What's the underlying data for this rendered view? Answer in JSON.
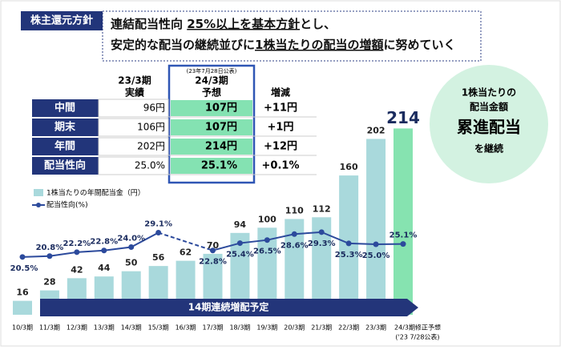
{
  "header": {
    "tag": "株主還元方針",
    "line1": [
      "連結配当性向 ",
      "25%以上を基本方針",
      "とし、"
    ],
    "line2": [
      "安定的な配当の継続並びに",
      "1株当たりの配当の増額",
      "に努めていく"
    ]
  },
  "table": {
    "note": "(23年7月28日公表)",
    "columns": [
      [
        "23/3期",
        "実績"
      ],
      [
        "24/3期",
        "予想"
      ],
      [
        "増減"
      ]
    ],
    "rows": [
      [
        "中間",
        "96円",
        "107円",
        "+11円"
      ],
      [
        "期末",
        "106円",
        "107円",
        "+1円"
      ],
      [
        "年間",
        "202円",
        "214円",
        "+12円"
      ],
      [
        "配当性向",
        "25.0%",
        "25.1%",
        "+0.1%"
      ]
    ]
  },
  "callout": [
    "1株当たりの",
    "配当金額",
    "累進配当",
    "を継続"
  ],
  "chart_data": {
    "type": "bar-line",
    "categories": [
      "10/3期",
      "11/3期",
      "12/3期",
      "13/3期",
      "14/3期",
      "15/3期",
      "16/3期",
      "17/3期",
      "18/3期",
      "19/3期",
      "20/3期",
      "21/3期",
      "22/3期",
      "23/3期",
      "24/3期修正予想"
    ],
    "last_category_note": "('23 7/28公表)",
    "series": [
      {
        "name": "1株当たりの年間配当金（円）",
        "color": "#a9d9dc",
        "highlight_color": "#86e3b0",
        "values": [
          16,
          28,
          42,
          44,
          50,
          56,
          62,
          70,
          94,
          100,
          110,
          112,
          160,
          202,
          214
        ]
      },
      {
        "name": "配当性向(%)",
        "color": "#2c4a9c",
        "axis": "y2",
        "values": [
          20.5,
          20.8,
          22.2,
          22.8,
          24.0,
          29.1,
          null,
          22.8,
          25.4,
          26.5,
          28.6,
          29.3,
          25.3,
          25.0,
          25.1
        ],
        "value_labels": [
          "20.5%",
          "20.8%",
          "22.2%",
          "22.8%",
          "24.0%",
          "29.1%",
          null,
          "22.8%",
          "25.4%",
          "26.5%",
          "28.6%",
          "29.3%",
          "25.3%",
          "25.0%",
          "25.1%"
        ],
        "bridge_gaps_dashed": true
      }
    ],
    "ylim": [
      0,
      230
    ],
    "y2lim": [
      0,
      71
    ],
    "annotation": "14期連続増配予定"
  }
}
